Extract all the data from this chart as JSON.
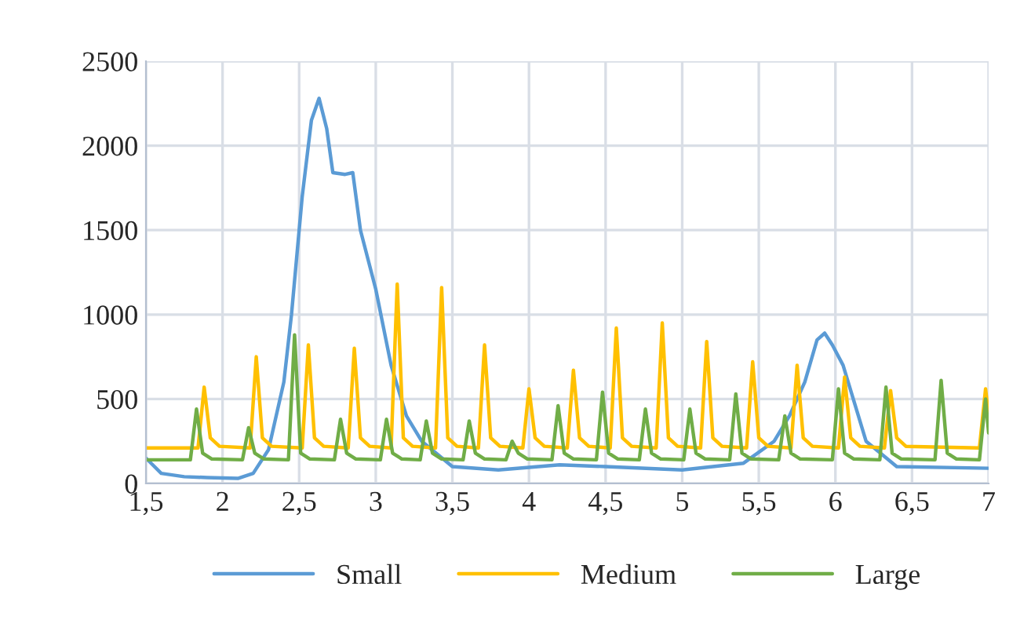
{
  "chart_data": {
    "type": "line",
    "xlim": [
      1.5,
      7
    ],
    "ylim": [
      0,
      2500
    ],
    "xticks": [
      {
        "value": 1.5,
        "label": "1,5"
      },
      2,
      {
        "value": 2.5,
        "label": "2,5"
      },
      3,
      {
        "value": 3.5,
        "label": "3,5"
      },
      4,
      {
        "value": 4.5,
        "label": "4,5"
      },
      5,
      {
        "value": 5.5,
        "label": "5,5"
      },
      6,
      {
        "value": 6.5,
        "label": "6,5"
      },
      7
    ],
    "yticks": [
      0,
      500,
      1000,
      1500,
      2000,
      2500
    ],
    "grid": true,
    "legend": "bottom",
    "series": [
      {
        "name": "Small",
        "color": "#5b9bd5",
        "x": [
          1.5,
          1.6,
          1.75,
          1.9,
          2.1,
          2.2,
          2.3,
          2.4,
          2.45,
          2.52,
          2.58,
          2.63,
          2.68,
          2.72,
          2.8,
          2.85,
          2.9,
          3.0,
          3.1,
          3.2,
          3.3,
          3.5,
          3.8,
          4.2,
          4.5,
          5.0,
          5.4,
          5.6,
          5.7,
          5.8,
          5.88,
          5.93,
          5.98,
          6.05,
          6.2,
          6.4,
          7.0
        ],
        "values": [
          150,
          60,
          40,
          35,
          30,
          60,
          200,
          600,
          1000,
          1700,
          2150,
          2280,
          2100,
          1840,
          1830,
          1840,
          1500,
          1150,
          700,
          400,
          250,
          100,
          80,
          110,
          100,
          80,
          120,
          250,
          400,
          600,
          850,
          890,
          820,
          700,
          250,
          100,
          90
        ]
      },
      {
        "name": "Medium",
        "color": "#ffc000",
        "x": [
          1.5,
          1.84,
          1.88,
          1.92,
          1.98,
          2.18,
          2.22,
          2.26,
          2.32,
          2.52,
          2.56,
          2.6,
          2.66,
          2.82,
          2.86,
          2.9,
          2.96,
          3.1,
          3.14,
          3.18,
          3.24,
          3.39,
          3.43,
          3.47,
          3.53,
          3.67,
          3.71,
          3.75,
          3.81,
          3.96,
          4.0,
          4.04,
          4.1,
          4.25,
          4.29,
          4.33,
          4.39,
          4.53,
          4.57,
          4.61,
          4.67,
          4.83,
          4.87,
          4.91,
          4.97,
          5.12,
          5.16,
          5.2,
          5.26,
          5.42,
          5.46,
          5.5,
          5.56,
          5.71,
          5.75,
          5.79,
          5.85,
          6.02,
          6.06,
          6.1,
          6.16,
          6.32,
          6.36,
          6.4,
          6.46,
          6.94,
          6.98,
          7.0
        ],
        "values": [
          210,
          210,
          570,
          270,
          220,
          210,
          750,
          270,
          220,
          210,
          820,
          270,
          220,
          210,
          800,
          270,
          220,
          210,
          1180,
          270,
          220,
          210,
          1160,
          270,
          220,
          210,
          820,
          270,
          220,
          210,
          560,
          270,
          220,
          210,
          670,
          270,
          220,
          210,
          920,
          270,
          220,
          210,
          950,
          270,
          220,
          210,
          840,
          270,
          220,
          210,
          720,
          270,
          220,
          210,
          700,
          270,
          220,
          210,
          630,
          270,
          220,
          210,
          550,
          270,
          220,
          210,
          560,
          400
        ]
      },
      {
        "name": "Large",
        "color": "#70ad47",
        "x": [
          1.5,
          1.79,
          1.83,
          1.87,
          1.93,
          2.13,
          2.17,
          2.21,
          2.27,
          2.43,
          2.47,
          2.51,
          2.57,
          2.73,
          2.77,
          2.81,
          2.87,
          3.03,
          3.07,
          3.11,
          3.17,
          3.29,
          3.33,
          3.37,
          3.43,
          3.57,
          3.61,
          3.65,
          3.71,
          3.85,
          3.89,
          3.93,
          3.99,
          4.15,
          4.19,
          4.23,
          4.29,
          4.44,
          4.48,
          4.52,
          4.58,
          4.72,
          4.76,
          4.8,
          4.86,
          5.01,
          5.05,
          5.09,
          5.15,
          5.31,
          5.35,
          5.39,
          5.45,
          5.63,
          5.67,
          5.71,
          5.77,
          5.98,
          6.02,
          6.06,
          6.12,
          6.29,
          6.33,
          6.37,
          6.43,
          6.65,
          6.69,
          6.73,
          6.79,
          6.94,
          6.98,
          7.0
        ],
        "values": [
          140,
          140,
          440,
          180,
          145,
          140,
          330,
          180,
          145,
          140,
          880,
          180,
          145,
          140,
          380,
          180,
          145,
          140,
          380,
          180,
          145,
          140,
          370,
          180,
          145,
          140,
          370,
          180,
          145,
          140,
          250,
          180,
          145,
          140,
          460,
          180,
          145,
          140,
          540,
          180,
          145,
          140,
          440,
          180,
          145,
          140,
          440,
          180,
          145,
          140,
          530,
          180,
          145,
          140,
          400,
          180,
          145,
          140,
          560,
          180,
          145,
          140,
          570,
          180,
          145,
          140,
          610,
          180,
          145,
          140,
          500,
          300
        ]
      }
    ]
  }
}
